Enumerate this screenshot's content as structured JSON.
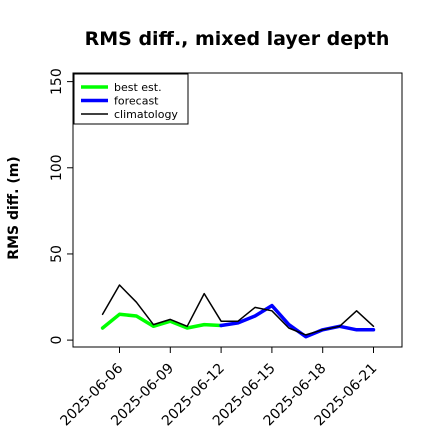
{
  "chart_data": {
    "type": "line",
    "title": "RMS diff., mixed layer depth",
    "xlabel": "",
    "ylabel": "RMS diff. (m)",
    "ylim": [
      -4,
      155
    ],
    "yticks": [
      0,
      50,
      100,
      150
    ],
    "xticks": [
      "2025-06-06",
      "2025-06-09",
      "2025-06-12",
      "2025-06-15",
      "2025-06-18",
      "2025-06-21"
    ],
    "highlighted_tick": "2025-06-12",
    "highlight_color": "#228B22",
    "grid": false,
    "legend_placement": "top-left",
    "series": [
      {
        "name": "best est.",
        "color": "#00ff00",
        "x": [
          "2025-06-05",
          "2025-06-06",
          "2025-06-07",
          "2025-06-08",
          "2025-06-09",
          "2025-06-10",
          "2025-06-11",
          "2025-06-12"
        ],
        "values": [
          7,
          15,
          14,
          8,
          11,
          7,
          9,
          8.5
        ]
      },
      {
        "name": "forecast",
        "color": "#0000ff",
        "x": [
          "2025-06-12",
          "2025-06-13",
          "2025-06-14",
          "2025-06-15",
          "2025-06-16",
          "2025-06-17",
          "2025-06-18",
          "2025-06-19",
          "2025-06-20",
          "2025-06-21"
        ],
        "values": [
          8.5,
          10,
          14,
          20,
          9,
          2,
          6,
          8,
          6,
          6
        ]
      },
      {
        "name": "climatology",
        "color": "#000000",
        "x": [
          "2025-06-05",
          "2025-06-06",
          "2025-06-07",
          "2025-06-08",
          "2025-06-09",
          "2025-06-10",
          "2025-06-11",
          "2025-06-12",
          "2025-06-13",
          "2025-06-14",
          "2025-06-15",
          "2025-06-16",
          "2025-06-17",
          "2025-06-18",
          "2025-06-19",
          "2025-06-20",
          "2025-06-21"
        ],
        "values": [
          15,
          32,
          22,
          9,
          12,
          8,
          27,
          11,
          11,
          19,
          17,
          7,
          3,
          6,
          8,
          17,
          8
        ]
      }
    ]
  }
}
